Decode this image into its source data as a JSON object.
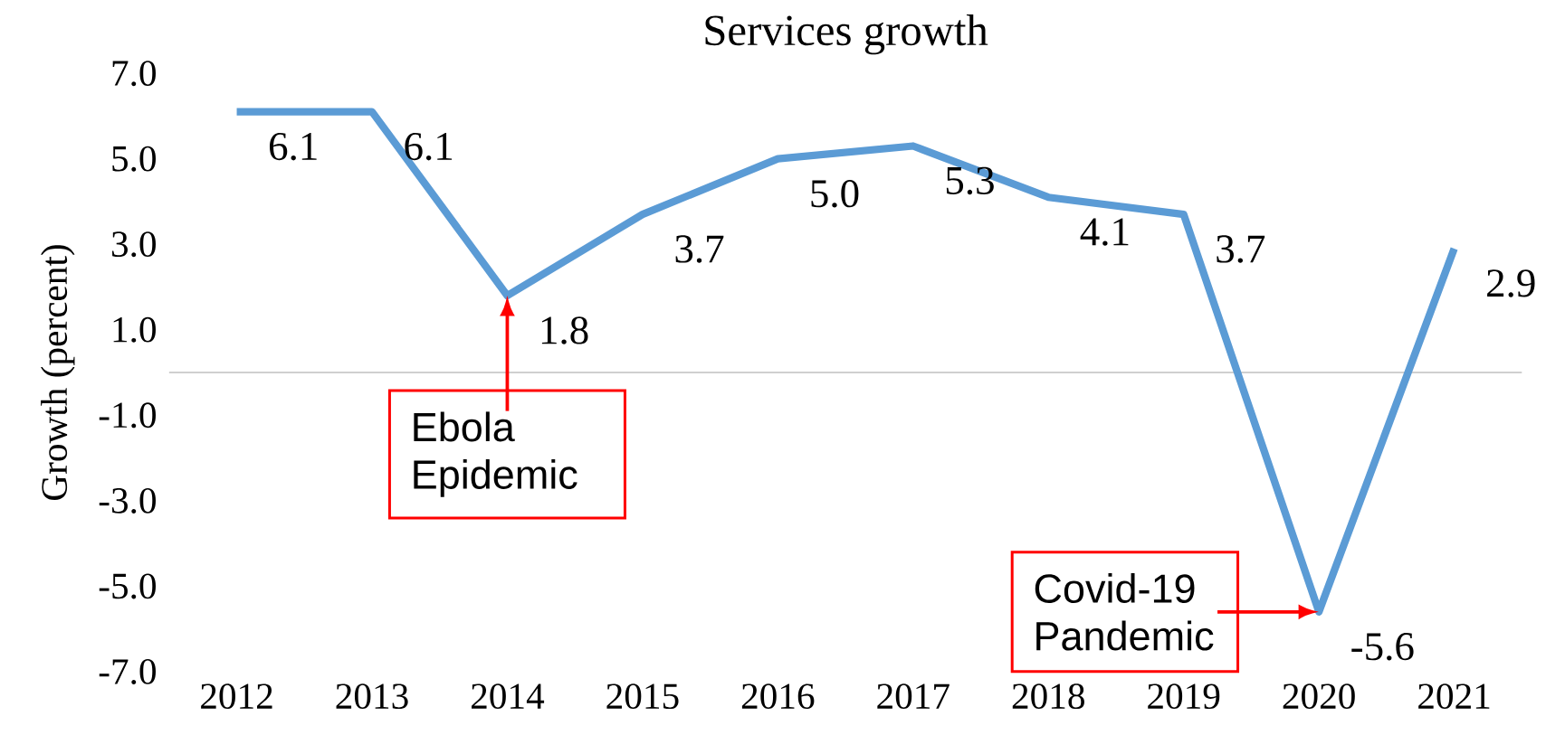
{
  "chart_data": {
    "type": "line",
    "title": "Services growth",
    "ylabel": "Growth (percent)",
    "categories": [
      "2012",
      "2013",
      "2014",
      "2015",
      "2016",
      "2017",
      "2018",
      "2019",
      "2020",
      "2021"
    ],
    "values": [
      6.1,
      6.1,
      1.8,
      3.7,
      5.0,
      5.3,
      4.1,
      3.7,
      -5.6,
      2.9
    ],
    "color": "#5b9bd5",
    "value_labels": [
      "6.1",
      "6.1",
      "1.8",
      "3.7",
      "5.0",
      "5.3",
      "4.1",
      "3.7",
      "-5.6",
      "2.9"
    ],
    "ylim": [
      -7,
      7
    ],
    "yticks": [
      {
        "value": -7,
        "label": "-7.0"
      },
      {
        "value": -5,
        "label": "-5.0"
      },
      {
        "value": -3,
        "label": "-3.0"
      },
      {
        "value": -1,
        "label": "-1.0"
      },
      {
        "value": 1,
        "label": "1.0"
      },
      {
        "value": 3,
        "label": "3.0"
      },
      {
        "value": 5,
        "label": "5.0"
      },
      {
        "value": 7,
        "label": "7.0"
      }
    ],
    "ref_lines": [
      {
        "axis": "y",
        "value": 0,
        "color": "#bfbfbf"
      }
    ],
    "annotations": [
      {
        "text": "Ebola Epidemic",
        "x": "2014",
        "y": 1.8
      },
      {
        "text": "Covid-19 Pandemic",
        "x": "2020",
        "y": -5.6
      }
    ]
  }
}
